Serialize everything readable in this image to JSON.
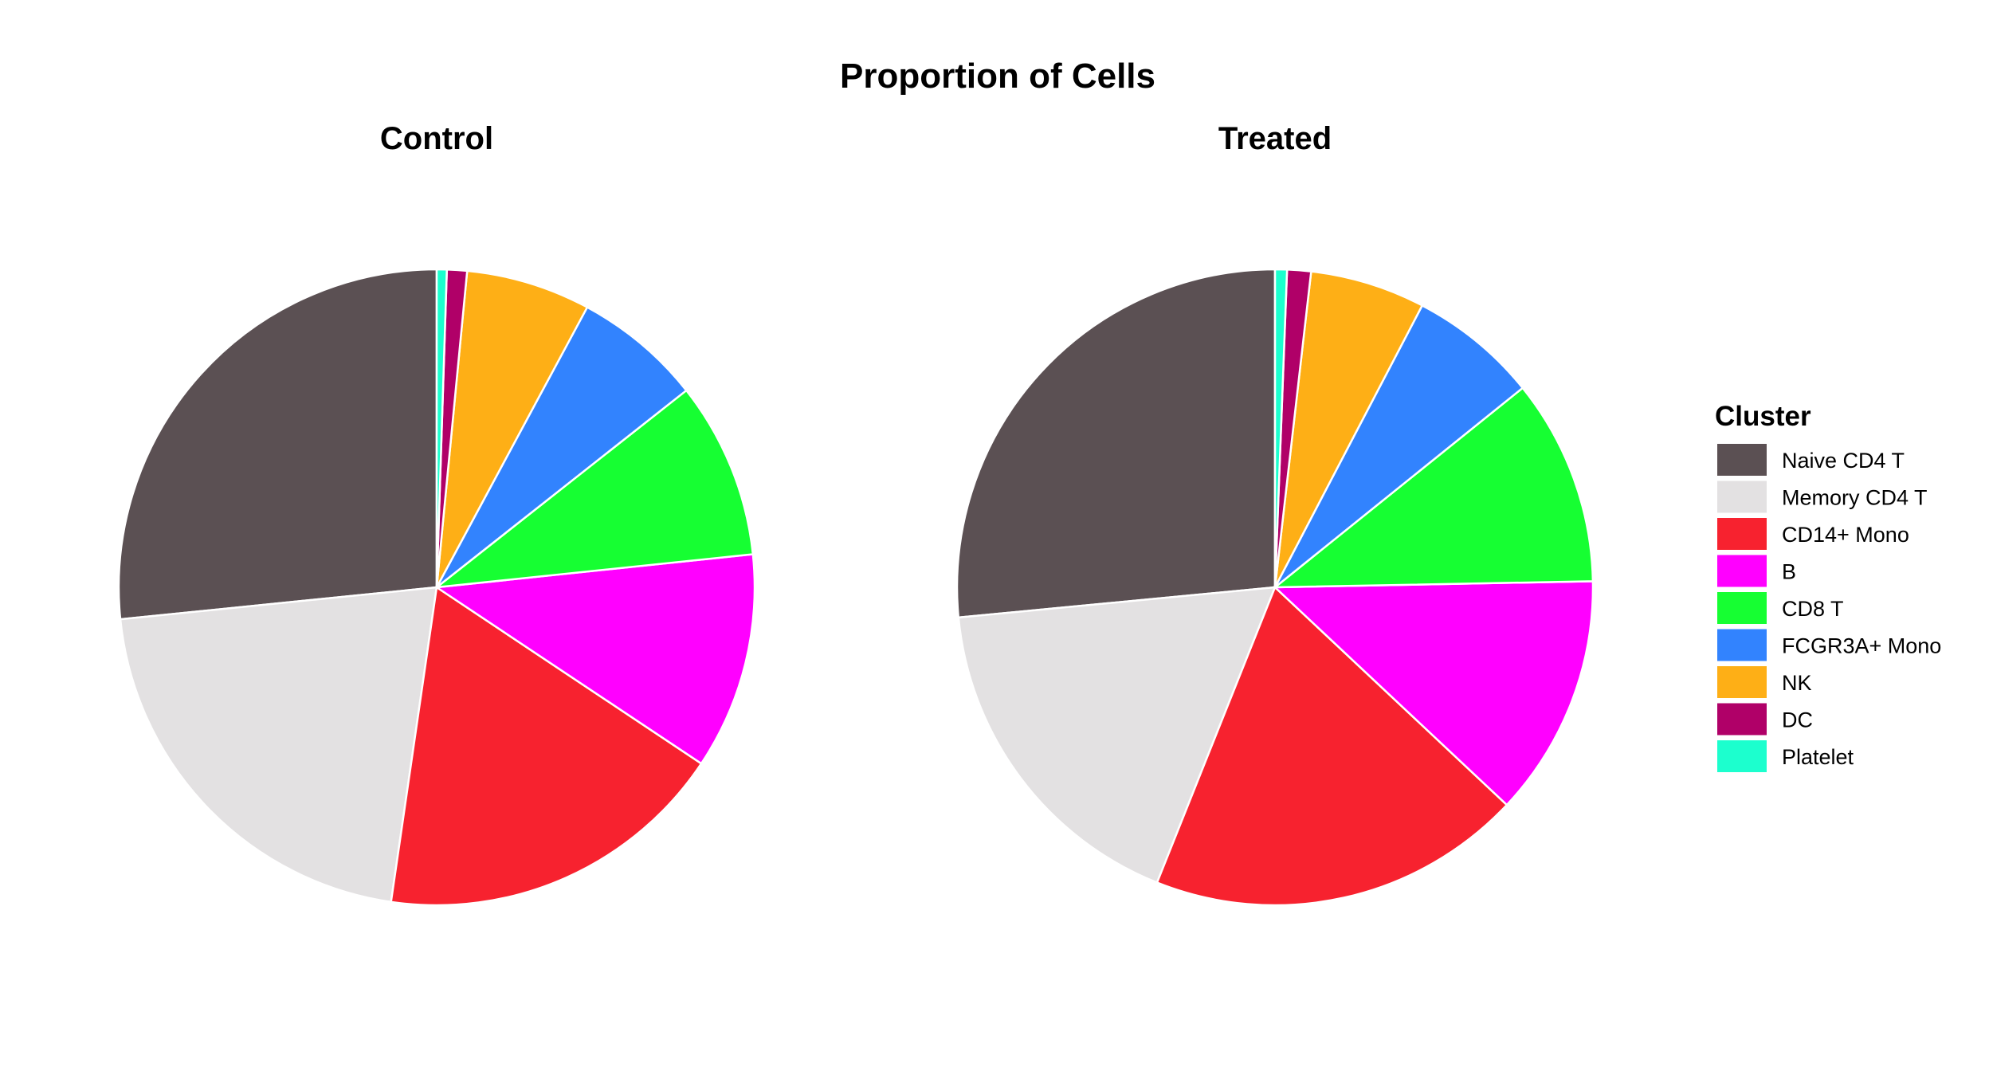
{
  "chart_data": {
    "type": "pie",
    "title": "Proportion of Cells",
    "legend": {
      "title": "Cluster",
      "position": "right",
      "entries": [
        {
          "label": "Naive CD4 T",
          "color": "#5B5053"
        },
        {
          "label": "Memory CD4 T",
          "color": "#E3E1E2"
        },
        {
          "label": "CD14+ Mono",
          "color": "#F7222F"
        },
        {
          "label": "B",
          "color": "#FF00FF"
        },
        {
          "label": "CD8 T",
          "color": "#16FF32"
        },
        {
          "label": "FCGR3A+ Mono",
          "color": "#3283FE"
        },
        {
          "label": "NK",
          "color": "#FEAF16"
        },
        {
          "label": "DC",
          "color": "#B00068"
        },
        {
          "label": "Platelet",
          "color": "#1CFFCE"
        }
      ]
    },
    "panels": [
      {
        "title": "Control",
        "slices": [
          {
            "label": "Naive CD4 T",
            "value": 26.1
          },
          {
            "label": "Memory CD4 T",
            "value": 20.7
          },
          {
            "label": "CD14+ Mono",
            "value": 17.6
          },
          {
            "label": "B",
            "value": 10.8
          },
          {
            "label": "CD8 T",
            "value": 8.8
          },
          {
            "label": "FCGR3A+ Mono",
            "value": 6.4
          },
          {
            "label": "NK",
            "value": 6.2
          },
          {
            "label": "DC",
            "value": 1.0
          },
          {
            "label": "Platelet",
            "value": 0.5
          }
        ]
      },
      {
        "title": "Treated",
        "slices": [
          {
            "label": "Naive CD4 T",
            "value": 26.3
          },
          {
            "label": "Memory CD4 T",
            "value": 17.3
          },
          {
            "label": "CD14+ Mono",
            "value": 18.9
          },
          {
            "label": "B",
            "value": 12.2
          },
          {
            "label": "CD8 T",
            "value": 10.4
          },
          {
            "label": "FCGR3A+ Mono",
            "value": 6.5
          },
          {
            "label": "NK",
            "value": 5.8
          },
          {
            "label": "DC",
            "value": 1.2
          },
          {
            "label": "Platelet",
            "value": 0.6
          }
        ]
      }
    ]
  }
}
